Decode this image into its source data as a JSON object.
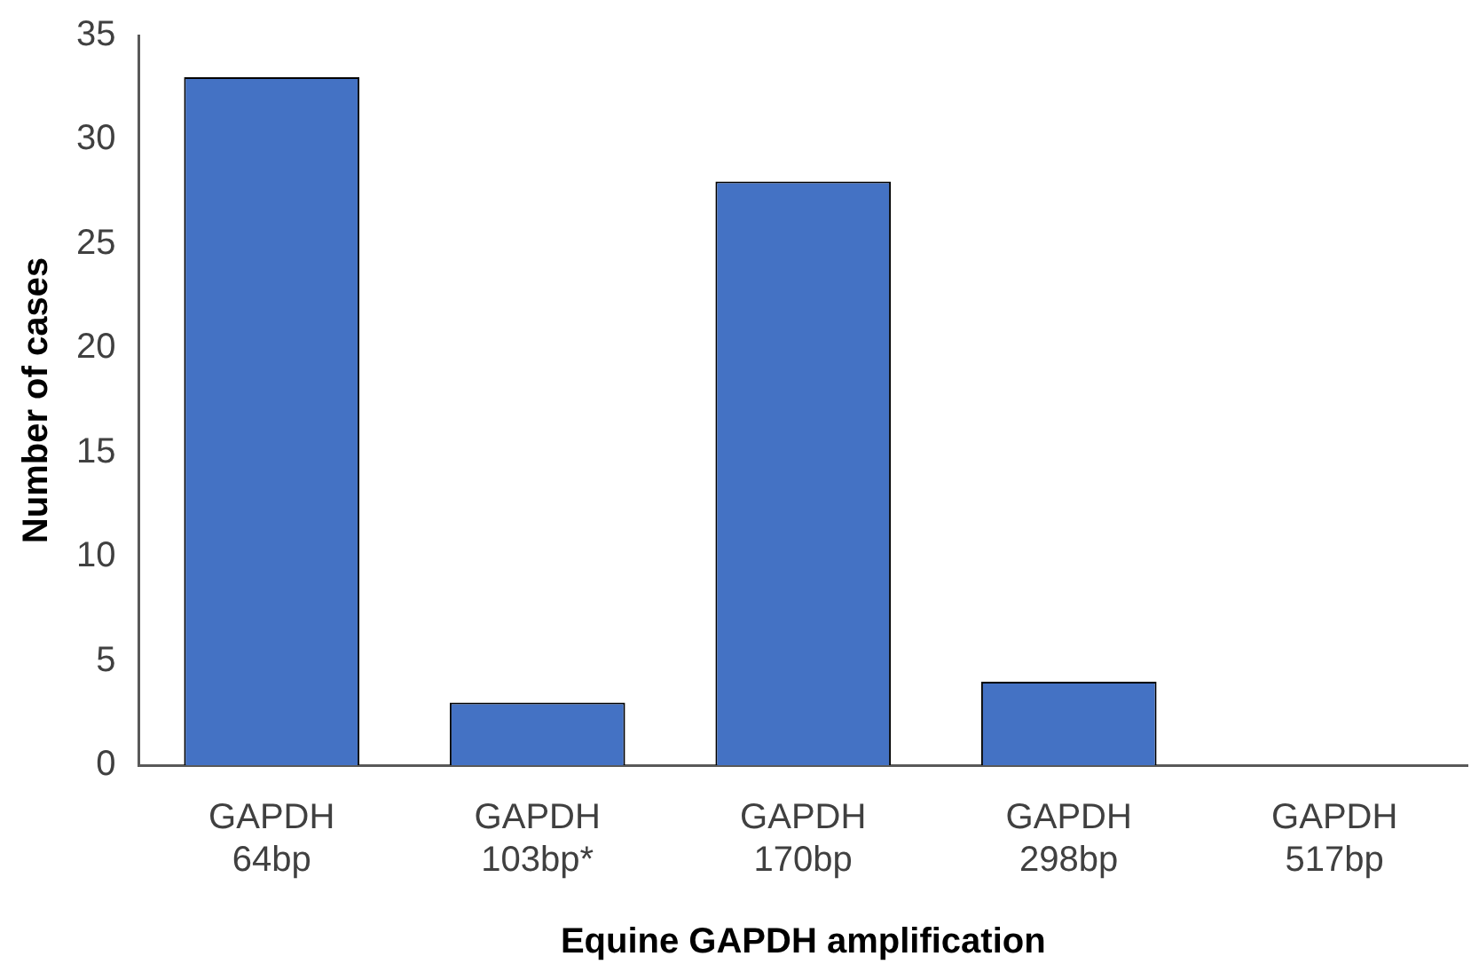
{
  "chart_data": {
    "type": "bar",
    "xlabel": "Equine GAPDH amplification",
    "ylabel": "Number of cases",
    "categories": [
      "GAPDH 64bp",
      "GAPDH 103bp*",
      "GAPDH 170bp",
      "GAPDH 298bp",
      "GAPDH 517bp"
    ],
    "values": [
      33,
      3,
      28,
      4,
      0
    ],
    "color": "#4472c4",
    "ylim": [
      0,
      35
    ],
    "yticks": [
      0,
      5,
      10,
      15,
      20,
      25,
      30,
      35
    ],
    "grid": false,
    "legend": false
  }
}
